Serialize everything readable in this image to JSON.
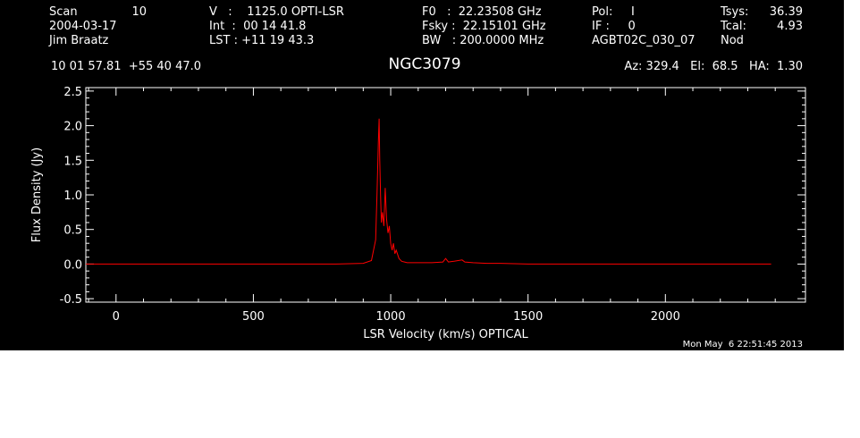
{
  "header": {
    "col1": {
      "row1_label": "Scan",
      "row1_value": "10",
      "row2": "2004-03-17",
      "row3": "Jim Braatz"
    },
    "col2": {
      "row1": "V   :    1125.0 OPTI-LSR",
      "row2": "Int  :  00 14 41.8",
      "row3": "LST : +11 19 43.3"
    },
    "col3": {
      "row1": "F0   :  22.23508 GHz",
      "row2": "Fsky :  22.15101 GHz",
      "row3": "BW   : 200.0000 MHz"
    },
    "col4": {
      "row1": "Pol:     I",
      "row2": "IF :     0",
      "row3": "AGBT02C_030_07"
    },
    "col5": {
      "tsys_label": "Tsys:",
      "tsys_value": "36.39",
      "tcal_label": "Tcal:",
      "tcal_value": "4.93",
      "row3": "Nod"
    },
    "coords": "10 01 57.81  +55 40 47.0",
    "source": "NGC3079",
    "pointing": "Az: 329.4   El:  68.5   HA:  1.30"
  },
  "timestamp": "Mon May  6 22:51:45 2013",
  "colors": {
    "background": "#000000",
    "foreground": "#ffffff",
    "trace": "#ff0000"
  },
  "chart_data": {
    "type": "line",
    "xlabel": "LSR Velocity (km/s) OPTICAL",
    "ylabel": "Flux Density (Jy)",
    "xlim": [
      -110,
      2510
    ],
    "ylim": [
      -0.55,
      2.55
    ],
    "xticks": [
      0,
      500,
      1000,
      1500,
      2000
    ],
    "yticks": [
      -0.5,
      0.0,
      0.5,
      1.0,
      1.5,
      2.0,
      2.5
    ],
    "ytick_labels": [
      "-0.5",
      "0.0",
      "0.5",
      "1.0",
      "1.5",
      "2.0",
      "2.5"
    ],
    "series": [
      {
        "color": "#ff0000",
        "x": [
          -110,
          0,
          200,
          400,
          600,
          800,
          900,
          930,
          945,
          950,
          955,
          958,
          960,
          963,
          966,
          970,
          975,
          980,
          985,
          990,
          995,
          1000,
          1005,
          1010,
          1015,
          1020,
          1030,
          1040,
          1060,
          1100,
          1150,
          1190,
          1200,
          1210,
          1230,
          1260,
          1270,
          1300,
          1350,
          1400,
          1500,
          1700,
          1900,
          2100,
          2300,
          2385
        ],
        "y": [
          0.0,
          0.0,
          0.0,
          0.0,
          0.0,
          0.0,
          0.01,
          0.05,
          0.35,
          1.0,
          1.75,
          2.1,
          1.5,
          1.0,
          0.6,
          0.75,
          0.55,
          1.1,
          0.65,
          0.45,
          0.55,
          0.3,
          0.2,
          0.3,
          0.15,
          0.2,
          0.08,
          0.04,
          0.02,
          0.02,
          0.02,
          0.03,
          0.08,
          0.03,
          0.04,
          0.06,
          0.03,
          0.02,
          0.01,
          0.01,
          0.0,
          0.0,
          0.0,
          0.0,
          0.0,
          0.0
        ]
      }
    ]
  }
}
